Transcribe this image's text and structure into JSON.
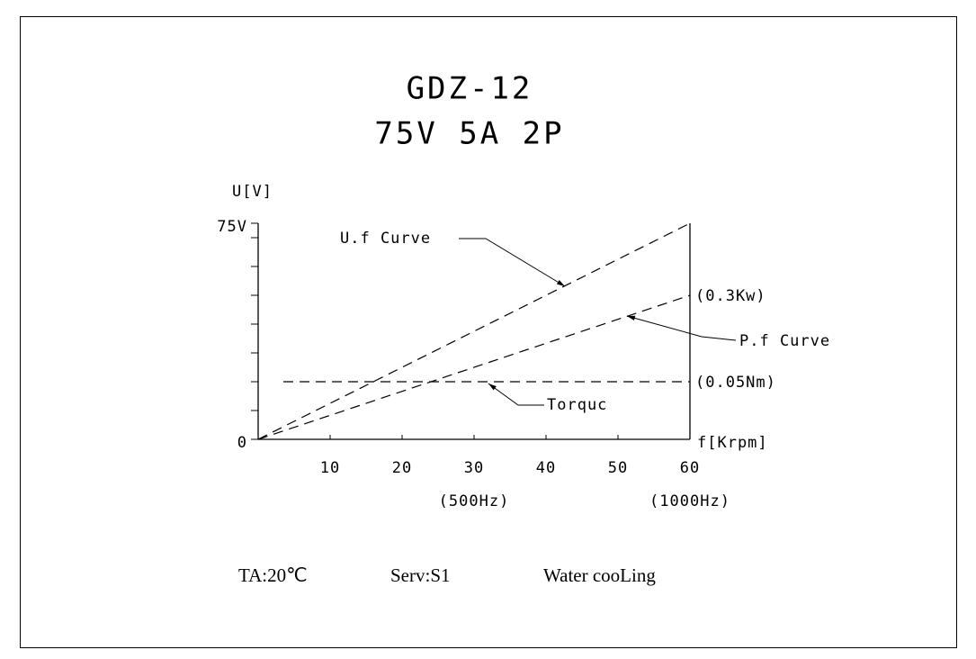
{
  "chart_data": {
    "type": "line",
    "title": "GDZ-12",
    "subtitle": "75V 5A 2P",
    "y_label": "U[V]",
    "x_label": "f[Krpm]",
    "xlim": [
      0,
      60
    ],
    "ylim": [
      0,
      75
    ],
    "xticks": [
      10,
      20,
      30,
      40,
      50,
      60
    ],
    "xticks_secondary": [
      {
        "value": 30,
        "label": "(500Hz)"
      },
      {
        "value": 60,
        "label": "(1000Hz)"
      }
    ],
    "yticks": [
      0,
      {
        "value": 75,
        "label": "75V"
      }
    ],
    "yticks_minor": [
      10,
      20,
      30,
      40,
      50,
      60,
      70
    ],
    "line_style": "dashed",
    "color": "#000000",
    "series": [
      {
        "name": "U.f Curve",
        "x": [
          0,
          60
        ],
        "values": [
          0,
          75
        ]
      },
      {
        "name": "P.f Curve",
        "x": [
          0,
          60
        ],
        "values": [
          0,
          50
        ],
        "end_label": "(0.3Kw)"
      },
      {
        "name": "Torquc",
        "x": [
          3.5,
          60
        ],
        "values": [
          20,
          20
        ],
        "end_label": "(0.05Nm)"
      }
    ],
    "footer": [
      "TA:20℃",
      "Serv:S1",
      "Water cooLing"
    ]
  }
}
